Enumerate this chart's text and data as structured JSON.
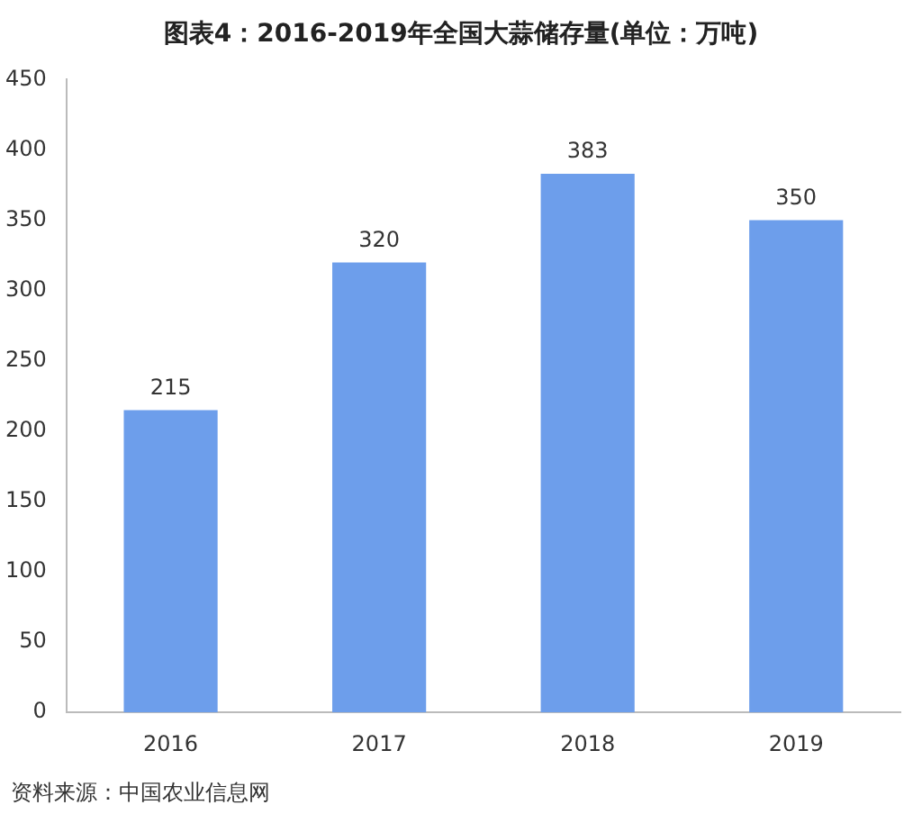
{
  "chart_data": {
    "type": "bar",
    "title": "图表4：2016-2019年全国大蒜储存量(单位：万吨)",
    "categories": [
      "2016",
      "2017",
      "2018",
      "2019"
    ],
    "values": [
      215,
      320,
      383,
      350
    ],
    "color": "#6d9eeb",
    "ylim": [
      0,
      450
    ],
    "yticks": [
      0,
      50,
      100,
      150,
      200,
      250,
      300,
      350,
      400,
      450
    ],
    "grid": false,
    "legend": false,
    "data_labels": true,
    "annotations": [
      "资料来源：中国农业信息网"
    ]
  }
}
